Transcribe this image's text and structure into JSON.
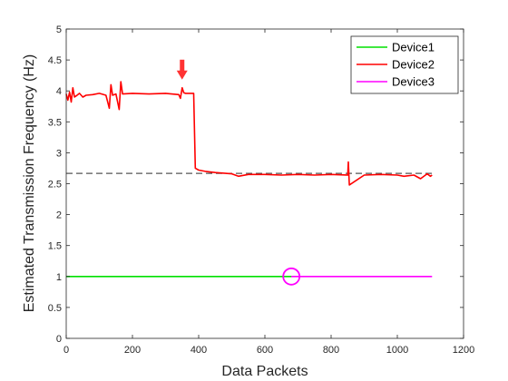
{
  "chart_data": {
    "type": "line",
    "title": "",
    "xlabel": "Data Packets",
    "ylabel": "Estimated Transmission Frequency (Hz)",
    "xlim": [
      0,
      1200
    ],
    "ylim": [
      0,
      5
    ],
    "xticks": [
      0,
      200,
      400,
      600,
      800,
      1000,
      1200
    ],
    "yticks": [
      0,
      0.5,
      1,
      1.5,
      2,
      2.5,
      3,
      3.5,
      4,
      4.5,
      5
    ],
    "grid": false,
    "legend_position": "top-right",
    "series": [
      {
        "name": "Device1",
        "color": "#00e000",
        "x": [
          0,
          680
        ],
        "y": [
          1,
          1
        ]
      },
      {
        "name": "Device2",
        "color": "#ff0000",
        "x": [
          0,
          5,
          10,
          15,
          20,
          25,
          30,
          40,
          50,
          60,
          80,
          100,
          120,
          130,
          135,
          140,
          150,
          160,
          165,
          170,
          200,
          250,
          300,
          340,
          345,
          350,
          355,
          360,
          380,
          385,
          390,
          400,
          420,
          450,
          500,
          520,
          550,
          600,
          650,
          700,
          750,
          800,
          850,
          852,
          855,
          900,
          950,
          1000,
          1020,
          1050,
          1070,
          1090,
          1100,
          1105
        ],
        "y": [
          3.95,
          3.85,
          3.98,
          3.82,
          4.05,
          3.9,
          3.92,
          3.96,
          3.9,
          3.93,
          3.94,
          3.96,
          3.93,
          3.72,
          4.1,
          3.93,
          3.95,
          3.7,
          4.15,
          3.95,
          3.96,
          3.95,
          3.96,
          3.94,
          3.88,
          4.05,
          3.97,
          3.96,
          3.96,
          3.96,
          2.75,
          2.72,
          2.7,
          2.68,
          2.66,
          2.62,
          2.65,
          2.65,
          2.64,
          2.65,
          2.64,
          2.65,
          2.64,
          2.85,
          2.48,
          2.64,
          2.65,
          2.64,
          2.62,
          2.64,
          2.58,
          2.66,
          2.62,
          2.64
        ]
      },
      {
        "name": "Device3",
        "color": "#ff00ff",
        "x": [
          680,
          1105
        ],
        "y": [
          1,
          1
        ]
      }
    ],
    "reference_lines": [
      {
        "y": 2.667,
        "x_range": [
          0,
          1110
        ],
        "color": "#555555",
        "style": "dashed"
      },
      {
        "y": 1.0,
        "x_range": [
          0,
          1110
        ],
        "color": "#555555",
        "style": "dashed"
      }
    ],
    "annotations": [
      {
        "type": "arrow-down",
        "x": 350,
        "y": 4.05,
        "color": "#ff3333"
      },
      {
        "type": "circle",
        "x": 680,
        "y": 1.0,
        "color": "#ff00ff"
      }
    ]
  }
}
